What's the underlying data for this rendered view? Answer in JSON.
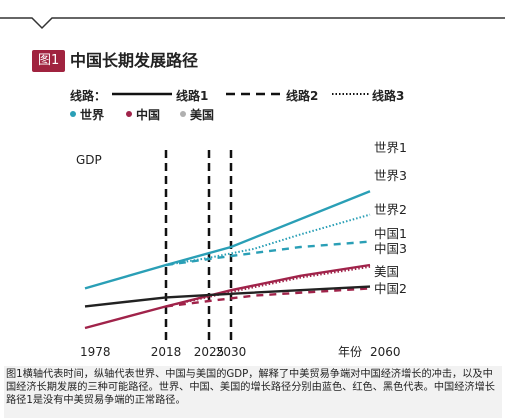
{
  "figure": {
    "badge": "图1",
    "title": "中国长期发展路径"
  },
  "legend": {
    "route_label": "线路：",
    "routes": [
      "线路1",
      "线路2",
      "线路3"
    ],
    "regions": [
      {
        "name": "世界",
        "color": "#2a9fb6"
      },
      {
        "name": "中国",
        "color": "#a0234a"
      },
      {
        "name": "美国",
        "color": "#b0b0b0"
      }
    ]
  },
  "chart_data": {
    "type": "line",
    "ylabel": "GDP",
    "xlabel": "年份",
    "x_ticks": [
      "1978",
      "2018",
      "2025",
      "2030",
      "2060"
    ],
    "x_tick_values": [
      1978,
      2018,
      2025,
      2030,
      2060
    ],
    "y_range": [
      0,
      100
    ],
    "vertical_dashed_lines": [
      2018,
      2025,
      2030
    ],
    "series": [
      {
        "name": "世界1",
        "region": "世界",
        "route": "线路1",
        "color": "#2a9fb6",
        "points": [
          [
            1978,
            22
          ],
          [
            2018,
            35
          ],
          [
            2030,
            45
          ],
          [
            2060,
            76
          ]
        ]
      },
      {
        "name": "世界3",
        "region": "世界",
        "route": "线路3",
        "color": "#2a9fb6",
        "points": [
          [
            2018,
            35
          ],
          [
            2025,
            39
          ],
          [
            2035,
            44
          ],
          [
            2045,
            52
          ],
          [
            2060,
            63
          ]
        ]
      },
      {
        "name": "世界2",
        "region": "世界",
        "route": "线路2",
        "color": "#2a9fb6",
        "points": [
          [
            2018,
            35
          ],
          [
            2030,
            40
          ],
          [
            2045,
            45
          ],
          [
            2060,
            48
          ]
        ]
      },
      {
        "name": "中国1",
        "region": "中国",
        "route": "线路1",
        "color": "#a0234a",
        "points": [
          [
            1978,
            0
          ],
          [
            2018,
            12
          ],
          [
            2030,
            21
          ],
          [
            2045,
            29
          ],
          [
            2060,
            35
          ]
        ]
      },
      {
        "name": "中国3",
        "region": "中国",
        "route": "线路3",
        "color": "#a0234a",
        "points": [
          [
            2018,
            12
          ],
          [
            2030,
            20
          ],
          [
            2045,
            28
          ],
          [
            2060,
            34
          ]
        ]
      },
      {
        "name": "中国2",
        "region": "中国",
        "route": "线路2",
        "color": "#a0234a",
        "points": [
          [
            2018,
            12
          ],
          [
            2025,
            15
          ],
          [
            2035,
            18
          ],
          [
            2060,
            22
          ]
        ]
      },
      {
        "name": "美国",
        "region": "美国",
        "route": "线路1",
        "color": "#222222",
        "points": [
          [
            1978,
            12
          ],
          [
            2018,
            17
          ],
          [
            2030,
            19
          ],
          [
            2060,
            23
          ]
        ]
      }
    ],
    "line_labels": [
      "世界1",
      "世界3",
      "世界2",
      "中国1",
      "中国3",
      "美国",
      "中国2"
    ]
  },
  "caption": "图1横轴代表时间，纵轴代表世界、中国与美国的GDP，解释了中美贸易争端对中国经济增长的冲击，以及中国经济长期发展的三种可能路径。世界、中国、美国的增长路径分别由蓝色、红色、黑色代表。中国经济增长路径1是没有中美贸易争端的正常路径。"
}
